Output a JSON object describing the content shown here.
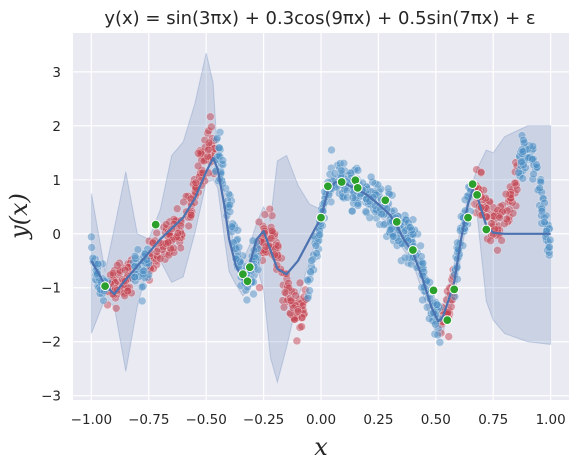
{
  "chart_data": {
    "type": "scatter",
    "title": "y(x) = sin(3πx) + 0.3cos(9πx) + 0.5sin(7πx) + ε",
    "xlabel": "x",
    "ylabel": "y(x)",
    "xlim": [
      -1.08,
      1.08
    ],
    "ylim": [
      -3.08,
      3.72
    ],
    "xticks": [
      -1.0,
      -0.75,
      -0.5,
      -0.25,
      0.0,
      0.25,
      0.5,
      0.75,
      1.0
    ],
    "xtick_labels": [
      "−1.00",
      "−0.75",
      "−0.50",
      "−0.25",
      "0.00",
      "0.25",
      "0.50",
      "0.75",
      "1.00"
    ],
    "yticks": [
      -3,
      -2,
      -1,
      0,
      1,
      2,
      3
    ],
    "ytick_labels": [
      "−3",
      "−2",
      "−1",
      "0",
      "1",
      "2",
      "3"
    ],
    "grid": true,
    "background": "#EAEAF2",
    "colors": {
      "observed_points": "#4C8DC4",
      "heldout_points": "#C4414F",
      "training_points": "#2CA02C",
      "mean_line": "#4C72B0",
      "band": "#4C72B0"
    },
    "observed_regions": [
      [
        -1.0,
        -0.93
      ],
      [
        -0.82,
        -0.75
      ],
      [
        -0.46,
        -0.27
      ],
      [
        -0.06,
        0.52
      ],
      [
        0.58,
        0.66
      ],
      [
        0.86,
        1.0
      ]
    ],
    "heldout_regions": [
      [
        -0.93,
        -0.82
      ],
      [
        -0.75,
        -0.46
      ],
      [
        -0.27,
        -0.06
      ],
      [
        0.52,
        0.58
      ],
      [
        0.66,
        0.86
      ]
    ],
    "training_points": {
      "x": [
        -0.94,
        -0.72,
        -0.34,
        -0.32,
        -0.31,
        0.0,
        0.03,
        0.09,
        0.15,
        0.16,
        0.28,
        0.33,
        0.4,
        0.49,
        0.55,
        0.58,
        0.64,
        0.66,
        0.68,
        0.72
      ],
      "y": [
        -0.97,
        0.17,
        -0.75,
        -0.88,
        -0.62,
        0.3,
        0.88,
        0.96,
        0.99,
        0.85,
        0.62,
        0.22,
        -0.3,
        -1.05,
        -1.6,
        -1.03,
        0.3,
        0.92,
        0.72,
        0.08
      ]
    },
    "mean_curve": {
      "x": [
        -1.0,
        -0.94,
        -0.9,
        -0.85,
        -0.8,
        -0.75,
        -0.7,
        -0.65,
        -0.6,
        -0.55,
        -0.5,
        -0.47,
        -0.45,
        -0.42,
        -0.4,
        -0.37,
        -0.34,
        -0.31,
        -0.28,
        -0.25,
        -0.22,
        -0.19,
        -0.15,
        -0.1,
        -0.05,
        0.0,
        0.03,
        0.06,
        0.09,
        0.12,
        0.16,
        0.2,
        0.25,
        0.3,
        0.33,
        0.36,
        0.4,
        0.44,
        0.48,
        0.51,
        0.53,
        0.55,
        0.58,
        0.61,
        0.64,
        0.66,
        0.68,
        0.72,
        0.75,
        0.8,
        0.9,
        1.0
      ],
      "y": [
        -0.5,
        -0.95,
        -1.12,
        -0.85,
        -0.6,
        -0.35,
        -0.1,
        0.1,
        0.3,
        0.65,
        1.15,
        1.4,
        1.2,
        0.5,
        -0.1,
        -0.6,
        -0.85,
        -0.55,
        -0.1,
        0.05,
        -0.3,
        -0.65,
        -0.75,
        -0.5,
        -0.1,
        0.3,
        0.8,
        0.95,
        0.97,
        0.9,
        0.82,
        0.72,
        0.55,
        0.35,
        0.15,
        -0.1,
        -0.35,
        -0.8,
        -1.35,
        -1.62,
        -1.55,
        -1.3,
        -0.9,
        -0.1,
        0.55,
        0.8,
        0.7,
        0.15,
        0.02,
        0.0,
        0.0,
        0.0
      ]
    },
    "band_upper": [
      0.75,
      -0.7,
      0.1,
      1.15,
      0.0,
      -0.1,
      0.45,
      1.45,
      1.7,
      2.4,
      3.35,
      2.8,
      1.4,
      0.75,
      0.2,
      -0.3,
      -0.5,
      -0.2,
      0.2,
      0.5,
      0.25,
      1.35,
      1.45,
      0.9,
      0.55,
      0.45,
      1.0,
      1.05,
      1.1,
      1.0,
      0.95,
      0.85,
      0.75,
      0.55,
      0.35,
      0.1,
      -0.15,
      -0.5,
      -1.0,
      -1.35,
      -1.35,
      -1.05,
      -0.55,
      0.2,
      0.65,
      0.95,
      1.2,
      1.55,
      1.5,
      1.8,
      2.0,
      2.0
    ],
    "band_lower": [
      -1.85,
      -1.2,
      -1.35,
      -2.55,
      -1.35,
      -0.55,
      -0.5,
      -0.9,
      -0.8,
      0.0,
      0.95,
      1.0,
      0.85,
      -0.1,
      -0.7,
      -0.95,
      -1.15,
      -1.0,
      -0.6,
      -1.05,
      -2.3,
      -2.75,
      -2.1,
      -1.2,
      -0.5,
      0.15,
      0.6,
      0.8,
      0.85,
      0.8,
      0.7,
      0.6,
      0.35,
      0.15,
      -0.05,
      -0.3,
      -0.55,
      -1.05,
      -1.65,
      -1.9,
      -1.85,
      -1.55,
      -1.2,
      -0.4,
      0.4,
      0.65,
      0.35,
      -1.25,
      -1.6,
      -1.85,
      -2.0,
      -2.05
    ]
  }
}
